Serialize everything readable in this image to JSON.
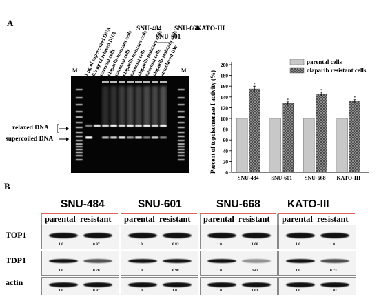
{
  "panel_a": {
    "letter": "A",
    "gel": {
      "lane_labels": [
        "1 μg of supercoiled DNA",
        "0.5 ng of relaxed DNA",
        "parental cells",
        "olaparib-resistant cells",
        "parental cells",
        "olaparib-resistant cells",
        "parental cells",
        "olaparib-resistant cells",
        "parental cells",
        "olaparib-resistant cells",
        "autoclaved DW"
      ],
      "marker_label": "M",
      "groups": [
        "SNU-484",
        "SNU-601",
        "SNU-668",
        "KATO-III"
      ],
      "relaxed_label": "relaxed DNA",
      "supercoiled_label": "supercoiled DNA"
    }
  },
  "chart_data": {
    "type": "bar",
    "categories": [
      "SNU-484",
      "SNU-601",
      "SNU-668",
      "KATO-III"
    ],
    "series": [
      {
        "name": "parental cells",
        "values": [
          100,
          100,
          100,
          100
        ],
        "color": "#c8c8c8"
      },
      {
        "name": "olaparib resistant cells",
        "values": [
          155,
          128,
          145,
          132
        ],
        "errors": [
          5,
          3,
          4,
          3
        ],
        "color": "#9a9a9a"
      }
    ],
    "significance": [
      "*",
      "*",
      "*",
      "*"
    ],
    "ylabel": "Percent of topoisomerase I activity (%)",
    "ylim": [
      0,
      200
    ],
    "yticks": [
      0,
      20,
      40,
      60,
      80,
      100,
      120,
      140,
      160,
      180,
      200
    ],
    "legend_position": "top-right"
  },
  "panel_b": {
    "letter": "B",
    "row_labels": [
      "TOP1",
      "TDP1",
      "actin"
    ],
    "conditions": [
      "parental",
      "resistant"
    ],
    "cell_lines": [
      {
        "name": "SNU-484",
        "top1": [
          "1.0",
          "0.97"
        ],
        "tdp1": [
          "1.0",
          "0.70"
        ],
        "actin": [
          "1.0",
          "0.97"
        ]
      },
      {
        "name": "SNU-601",
        "top1": [
          "1.0",
          "0.83"
        ],
        "tdp1": [
          "1.0",
          "0.98"
        ],
        "actin": [
          "1.0",
          "1.0"
        ]
      },
      {
        "name": "SNU-668",
        "top1": [
          "1.0",
          "1.00"
        ],
        "tdp1": [
          "1.0",
          "0.42"
        ],
        "actin": [
          "1.0",
          "1.01"
        ]
      },
      {
        "name": "KATO-III",
        "top1": [
          "1.0",
          "1.0"
        ],
        "tdp1": [
          "1.0",
          "0.73"
        ],
        "actin": [
          "1.0",
          "1.03"
        ]
      }
    ]
  }
}
